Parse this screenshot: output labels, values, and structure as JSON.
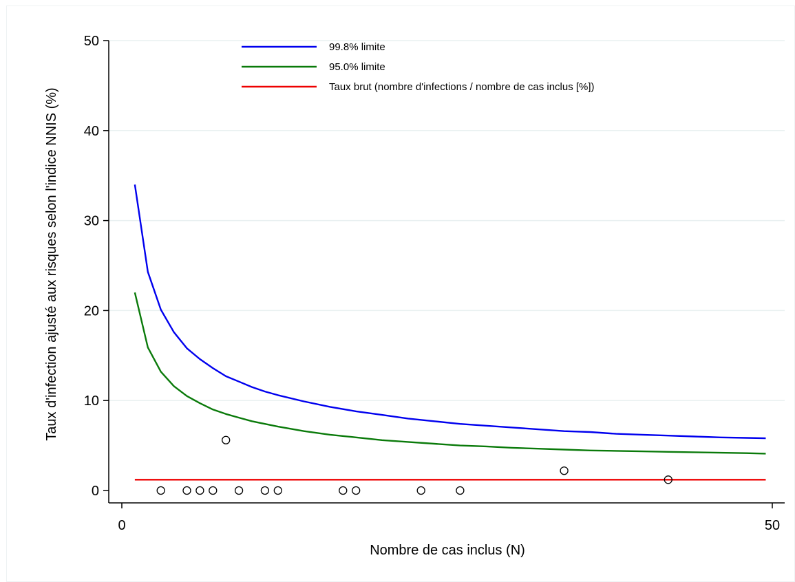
{
  "chart_data": {
    "type": "line",
    "title": "",
    "xlabel": "Nombre de cas inclus (N)",
    "ylabel": "Taux d'infection ajusté aux risques selon l'indice NNIS (%)",
    "xlim": [
      0,
      50
    ],
    "ylim": [
      0,
      50
    ],
    "x_ticks": [
      0,
      50
    ],
    "y_ticks": [
      0,
      10,
      20,
      30,
      40,
      50
    ],
    "grid": true,
    "legend_position": "top",
    "series": [
      {
        "name": "99.8% limite",
        "color": "#0000ee",
        "type": "line",
        "x": [
          1,
          2,
          3,
          4,
          5,
          6,
          7,
          8,
          9,
          10,
          11,
          12,
          14,
          16,
          18,
          20,
          22,
          24,
          26,
          28,
          30,
          32,
          34,
          36,
          38,
          40,
          42,
          44,
          46,
          48,
          49.5
        ],
        "y": [
          34.0,
          24.3,
          20.1,
          17.6,
          15.8,
          14.6,
          13.6,
          12.7,
          12.1,
          11.5,
          11.0,
          10.6,
          9.9,
          9.3,
          8.8,
          8.4,
          8.0,
          7.7,
          7.4,
          7.2,
          7.0,
          6.8,
          6.6,
          6.5,
          6.3,
          6.2,
          6.1,
          6.0,
          5.9,
          5.85,
          5.8
        ]
      },
      {
        "name": "95.0% limite",
        "color": "#0a7a0a",
        "type": "line",
        "x": [
          1,
          2,
          3,
          4,
          5,
          6,
          7,
          8,
          9,
          10,
          11,
          12,
          14,
          16,
          18,
          20,
          22,
          24,
          26,
          28,
          30,
          32,
          34,
          36,
          38,
          40,
          42,
          44,
          46,
          48,
          49.5
        ],
        "y": [
          22.0,
          15.9,
          13.2,
          11.6,
          10.5,
          9.7,
          9.0,
          8.5,
          8.1,
          7.7,
          7.4,
          7.1,
          6.6,
          6.2,
          5.9,
          5.6,
          5.4,
          5.2,
          5.0,
          4.9,
          4.75,
          4.65,
          4.55,
          4.45,
          4.4,
          4.35,
          4.3,
          4.25,
          4.2,
          4.15,
          4.1
        ]
      },
      {
        "name": "Taux brut (nombre d'infections / nombre de cas inclus [%])",
        "color": "#ee0000",
        "type": "line",
        "x": [
          1,
          49.5
        ],
        "y": [
          1.2,
          1.2
        ]
      }
    ],
    "scatter": {
      "name": "",
      "color": "#000000",
      "points": [
        {
          "x": 3,
          "y": 0
        },
        {
          "x": 5,
          "y": 0
        },
        {
          "x": 6,
          "y": 0
        },
        {
          "x": 7,
          "y": 0
        },
        {
          "x": 8,
          "y": 5.6
        },
        {
          "x": 9,
          "y": 0
        },
        {
          "x": 11,
          "y": 0
        },
        {
          "x": 12,
          "y": 0
        },
        {
          "x": 17,
          "y": 0
        },
        {
          "x": 18,
          "y": 0
        },
        {
          "x": 23,
          "y": 0
        },
        {
          "x": 26,
          "y": 0
        },
        {
          "x": 34,
          "y": 2.2
        },
        {
          "x": 42,
          "y": 1.2
        }
      ]
    }
  }
}
